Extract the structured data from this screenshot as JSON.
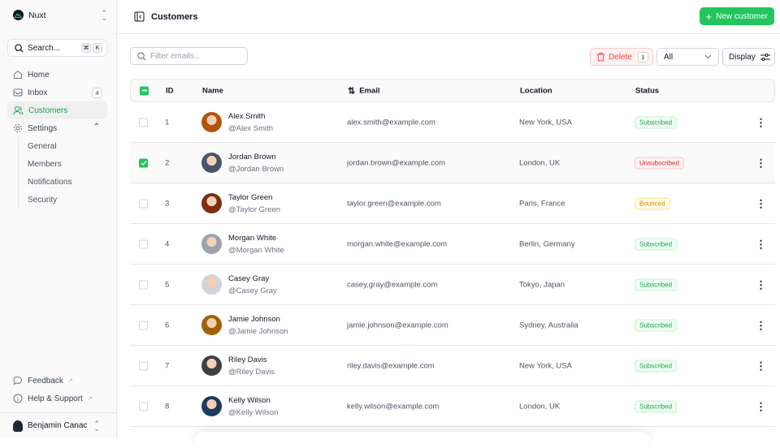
{
  "sidebar": {
    "team": "Nuxt",
    "search": {
      "label": "Search...",
      "kbd": [
        "⌘",
        "K"
      ]
    },
    "items": [
      {
        "label": "Home",
        "icon": "home-icon"
      },
      {
        "label": "Inbox",
        "icon": "inbox-icon",
        "badge": "4"
      },
      {
        "label": "Customers",
        "icon": "users-icon",
        "active": true
      },
      {
        "label": "Settings",
        "icon": "gear-icon"
      }
    ],
    "settings_sub": [
      "General",
      "Members",
      "Notifications",
      "Security"
    ],
    "footer": [
      {
        "label": "Feedback",
        "icon": "chat-icon"
      },
      {
        "label": "Help & Support",
        "icon": "info-icon"
      }
    ],
    "user": "Benjamin Canac"
  },
  "header": {
    "title": "Customers",
    "new_button": "New customer"
  },
  "toolbar": {
    "filter_placeholder": "Filter emails...",
    "delete_label": "Delete",
    "delete_count": "1",
    "status_filter": "All",
    "display_label": "Display"
  },
  "table": {
    "columns": [
      "ID",
      "Name",
      "Email",
      "Location",
      "Status"
    ],
    "rows": [
      {
        "id": "1",
        "name": "Alex Smith",
        "handle": "@Alex Smith",
        "email": "alex.smith@example.com",
        "location": "New York, USA",
        "status": "Subscribed",
        "selected": false
      },
      {
        "id": "2",
        "name": "Jordan Brown",
        "handle": "@Jordan Brown",
        "email": "jordan.brown@example.com",
        "location": "London, UK",
        "status": "Unsubscribed",
        "selected": true
      },
      {
        "id": "3",
        "name": "Taylor Green",
        "handle": "@Taylor Green",
        "email": "taylor.green@example.com",
        "location": "Paris, France",
        "status": "Bounced",
        "selected": false
      },
      {
        "id": "4",
        "name": "Morgan White",
        "handle": "@Morgan White",
        "email": "morgan.white@example.com",
        "location": "Berlin, Germany",
        "status": "Subscribed",
        "selected": false
      },
      {
        "id": "5",
        "name": "Casey Gray",
        "handle": "@Casey Gray",
        "email": "casey.gray@example.com",
        "location": "Tokyo, Japan",
        "status": "Subscribed",
        "selected": false
      },
      {
        "id": "6",
        "name": "Jamie Johnson",
        "handle": "@Jamie Johnson",
        "email": "jamie.johnson@example.com",
        "location": "Sydney, Australia",
        "status": "Subscribed",
        "selected": false
      },
      {
        "id": "7",
        "name": "Riley Davis",
        "handle": "@Riley Davis",
        "email": "riley.davis@example.com",
        "location": "New York, USA",
        "status": "Subscribed",
        "selected": false
      },
      {
        "id": "8",
        "name": "Kelly Wilson",
        "handle": "@Kelly Wilson",
        "email": "kelly.wilson@example.com",
        "location": "London, UK",
        "status": "Subscribed",
        "selected": false
      }
    ]
  },
  "colors": {
    "accent": "#22c55e",
    "danger": "#ef4444",
    "warning": "#ca8a04"
  }
}
